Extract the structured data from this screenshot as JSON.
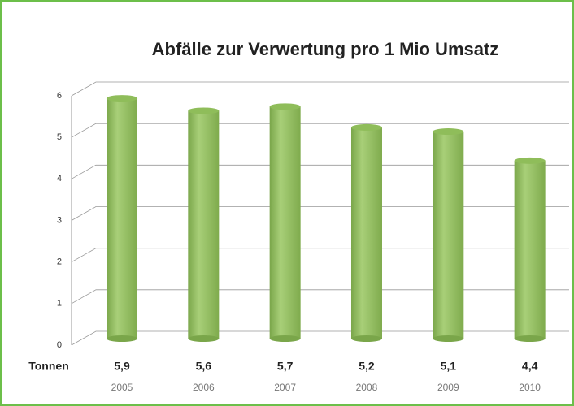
{
  "chart_data": {
    "type": "bar",
    "title": "Abfälle zur Verwertung pro 1 Mio Umsatz",
    "row_label": "Tonnen",
    "categories": [
      "2005",
      "2006",
      "2007",
      "2008",
      "2009",
      "2010"
    ],
    "values": [
      5.9,
      5.6,
      5.7,
      5.2,
      5.1,
      4.4
    ],
    "value_labels": [
      "5,9",
      "5,6",
      "5,7",
      "5,2",
      "5,1",
      "4,4"
    ],
    "ylim": [
      0,
      6
    ],
    "yticks": [
      0,
      1,
      2,
      3,
      4,
      5,
      6
    ],
    "grid": true,
    "color": "#8fbd5a"
  }
}
